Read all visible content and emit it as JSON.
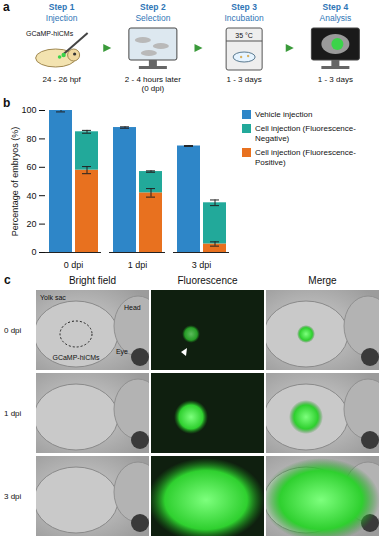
{
  "panel_letters": [
    "a",
    "b",
    "c"
  ],
  "panel_a": {
    "steps": [
      {
        "step": "Step 1",
        "title": "Injection",
        "icon_label": "GCaMP-hiCMs",
        "caption": "24 - 26 hpf"
      },
      {
        "step": "Step 2",
        "title": "Selection",
        "caption": "2 - 4 hours later (0 dpi)"
      },
      {
        "step": "Step 3",
        "title": "Incubation",
        "icon_label": "35 °C",
        "caption": "1 - 3 days"
      },
      {
        "step": "Step 4",
        "title": "Analysis",
        "caption": "1 - 3 days"
      }
    ]
  },
  "chart_data": {
    "type": "bar",
    "categories": [
      "0 dpi",
      "1 dpi",
      "3 dpi"
    ],
    "ylabel": "Percentage of embryos (%)",
    "ylim": [
      0,
      100
    ],
    "yticks": [
      0,
      20,
      40,
      60,
      80,
      100
    ],
    "legend": "right",
    "series": [
      {
        "name": "Vehicle injection",
        "color": "#2e86c8",
        "values": [
          100,
          88,
          75
        ],
        "errors": [
          1,
          0.5,
          0.3
        ]
      },
      {
        "name": "Cell injection (Fluorescence-Negative)",
        "color": "#22a99a",
        "values": [
          27,
          15,
          29
        ],
        "errors": [
          1,
          0.5,
          2
        ],
        "stacked": true
      },
      {
        "name": "Cell injection (Fluorescence-Positive)",
        "color": "#e8711f",
        "values": [
          58,
          42,
          6
        ],
        "errors": [
          2.5,
          3,
          1.5
        ],
        "stacked": true
      }
    ]
  },
  "panel_c": {
    "columns": [
      "Bright field",
      "Fluorescence",
      "Merge"
    ],
    "rows": [
      "0 dpi",
      "1 dpi",
      "3 dpi"
    ],
    "annotations": [
      "Yolk sac",
      "Head",
      "Eye",
      "GCaMP-hiCMs"
    ]
  }
}
